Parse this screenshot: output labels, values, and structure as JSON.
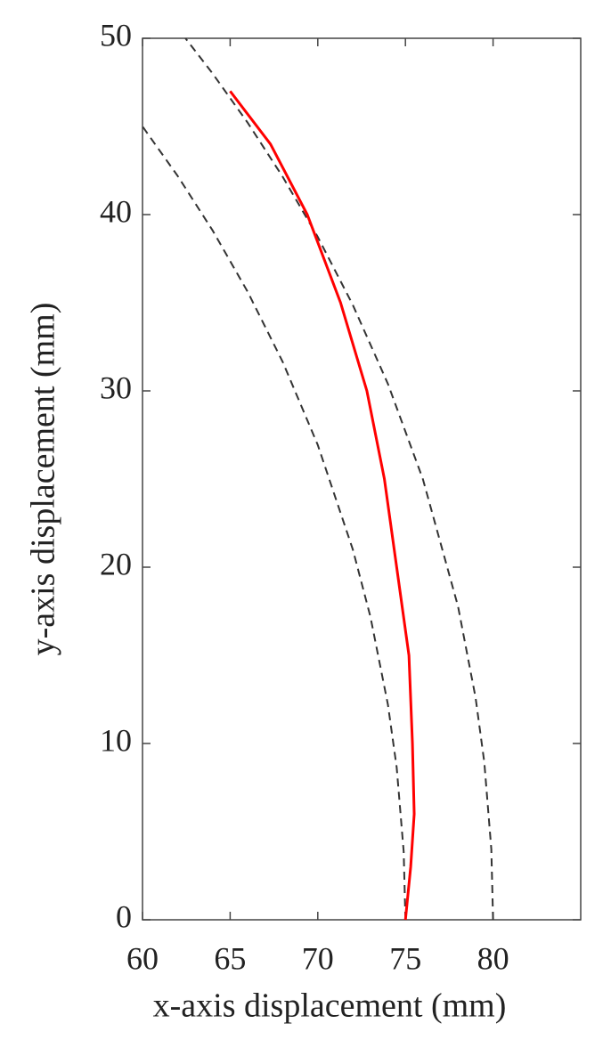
{
  "chart_data": {
    "type": "line",
    "xlabel": "x-axis displacement (mm)",
    "ylabel": "y-axis displacement (mm)",
    "xlim": [
      60,
      85
    ],
    "ylim": [
      0,
      50
    ],
    "xticks": [
      60,
      65,
      70,
      75,
      80
    ],
    "yticks": [
      0,
      10,
      20,
      30,
      40,
      50
    ],
    "series": [
      {
        "color": "#333333",
        "dashed": true,
        "x": [
          75,
          74.9,
          74.5,
          74,
          73,
          72,
          70,
          68,
          66,
          64,
          62,
          60
        ],
        "values": [
          0,
          3.87,
          8.65,
          12.21,
          17.2,
          21,
          26.93,
          31.64,
          35.62,
          39.1,
          42.2,
          45
        ]
      },
      {
        "color": "#333333",
        "dashed": true,
        "x": [
          80,
          79.9,
          79.5,
          79,
          78,
          76,
          74,
          72,
          70,
          68,
          66,
          64,
          62.45
        ],
        "values": [
          0,
          4.0,
          8.93,
          12.61,
          17.78,
          24.98,
          30.4,
          34.87,
          38.73,
          42.14,
          45.21,
          48,
          50
        ]
      },
      {
        "color": "#ff0000",
        "dashed": false,
        "x": [
          75,
          75.3,
          75.5,
          75.4,
          75.2,
          74.5,
          73.8,
          72.8,
          71.3,
          69.4,
          67.3,
          65
        ],
        "values": [
          0,
          3,
          6,
          10,
          15,
          20,
          25,
          30,
          35,
          40,
          44,
          47
        ]
      }
    ]
  }
}
